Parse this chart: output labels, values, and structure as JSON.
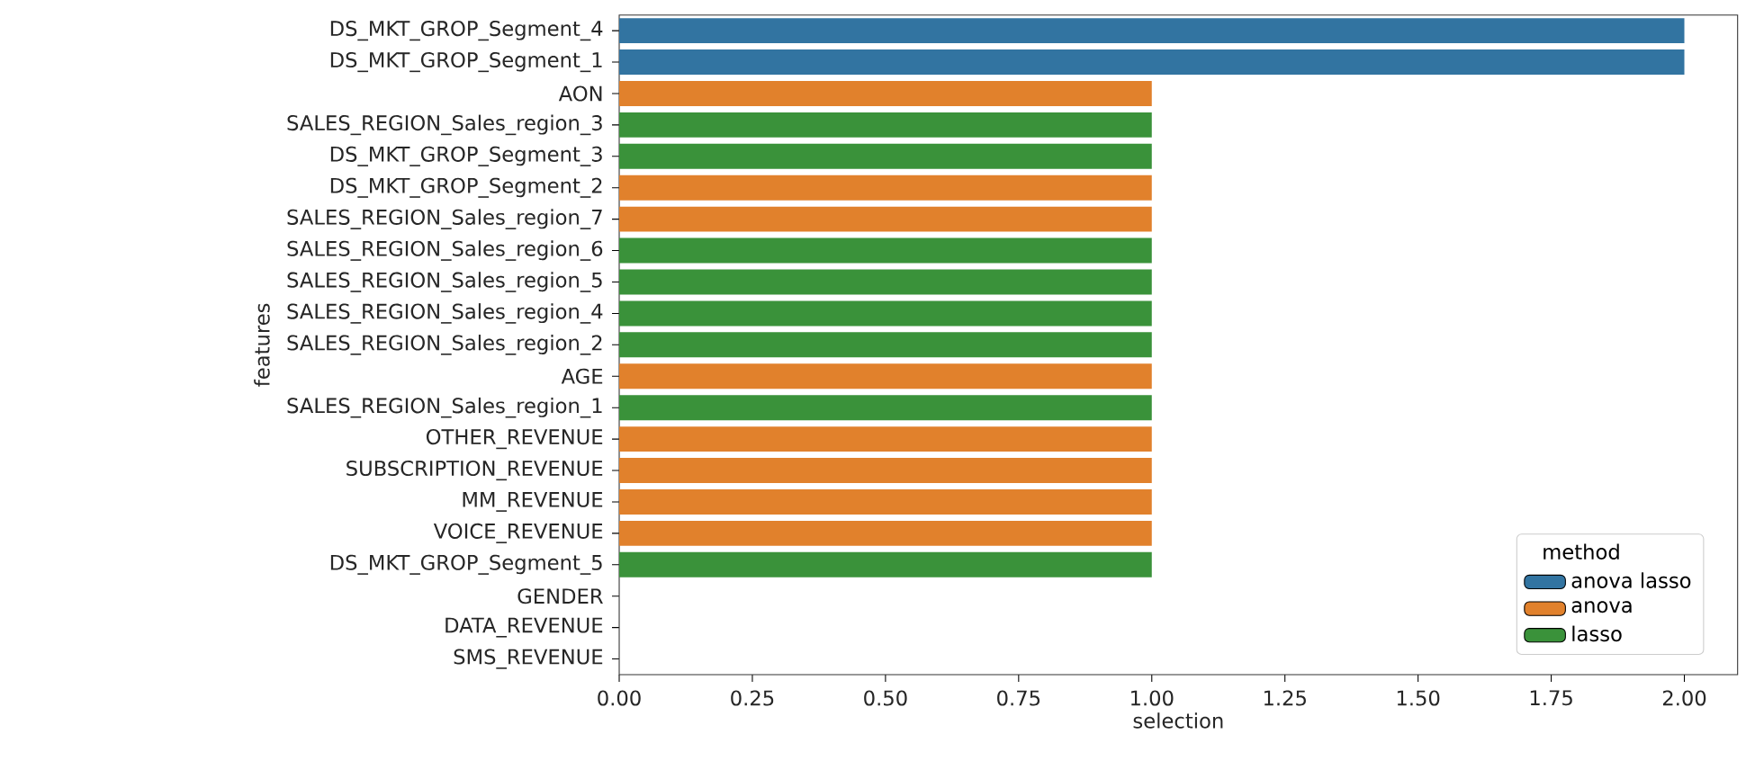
{
  "chart_data": {
    "type": "bar",
    "orientation": "horizontal",
    "xlabel": "selection",
    "ylabel": "features",
    "legend_title": "method",
    "legend": "bottom right",
    "categories": [
      "DS_MKT_GROP_Segment_4",
      "DS_MKT_GROP_Segment_1",
      "AON",
      "SALES_REGION_Sales_region_3",
      "DS_MKT_GROP_Segment_3",
      "DS_MKT_GROP_Segment_2",
      "SALES_REGION_Sales_region_7",
      "SALES_REGION_Sales_region_6",
      "SALES_REGION_Sales_region_5",
      "SALES_REGION_Sales_region_4",
      "SALES_REGION_Sales_region_2",
      "AGE",
      "SALES_REGION_Sales_region_1",
      "OTHER_REVENUE",
      "SUBSCRIPTION_REVENUE",
      "MM_REVENUE",
      "VOICE_REVENUE",
      "DS_MKT_GROP_Segment_5",
      "GENDER",
      "DATA_REVENUE",
      "SMS_REVENUE"
    ],
    "series": [
      {
        "name": "anova lasso",
        "color": "#3274a1",
        "values": [
          2,
          2,
          null,
          null,
          null,
          null,
          null,
          null,
          null,
          null,
          null,
          null,
          null,
          null,
          null,
          null,
          null,
          null,
          null,
          null,
          null
        ]
      },
      {
        "name": "anova",
        "color": "#e1812c",
        "values": [
          null,
          null,
          1,
          null,
          null,
          1,
          1,
          null,
          null,
          null,
          null,
          1,
          null,
          1,
          1,
          1,
          1,
          null,
          null,
          null,
          null
        ]
      },
      {
        "name": "lasso",
        "color": "#3a923a",
        "values": [
          null,
          null,
          null,
          1,
          1,
          null,
          null,
          1,
          1,
          1,
          1,
          null,
          1,
          null,
          null,
          null,
          null,
          1,
          null,
          null,
          null
        ]
      }
    ],
    "xlim": [
      0,
      2.1
    ],
    "xticks": [
      {
        "value": 0,
        "label": "0.00"
      },
      {
        "value": 0.25,
        "label": "0.25"
      },
      {
        "value": 0.5,
        "label": "0.50"
      },
      {
        "value": 0.75,
        "label": "0.75"
      },
      {
        "value": 1,
        "label": "1.00"
      },
      {
        "value": 1.25,
        "label": "1.25"
      },
      {
        "value": 1.5,
        "label": "1.50"
      },
      {
        "value": 1.75,
        "label": "1.75"
      },
      {
        "value": 2,
        "label": "2.00"
      }
    ]
  }
}
